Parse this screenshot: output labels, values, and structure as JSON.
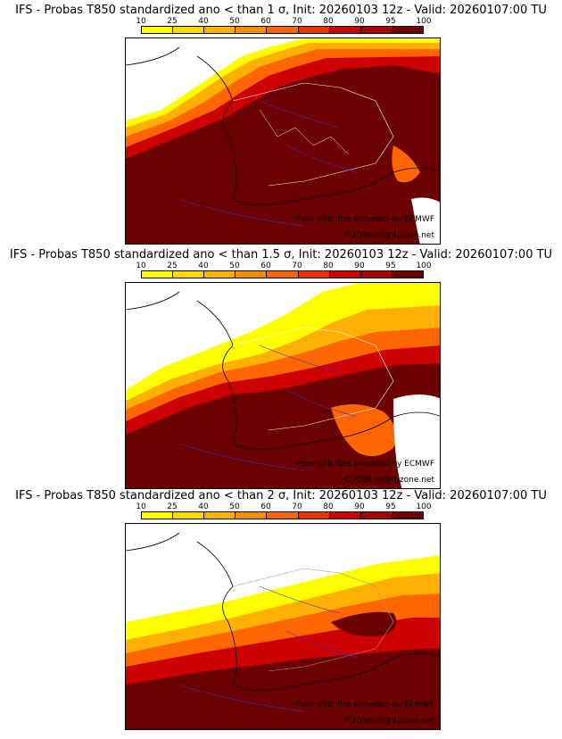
{
  "colorbar": {
    "ticks": [
      "10",
      "25",
      "40",
      "50",
      "60",
      "70",
      "80",
      "90",
      "95",
      "100"
    ],
    "colors": [
      "#ffff00",
      "#ffd700",
      "#ffb000",
      "#ff8c00",
      "#ff6600",
      "#ee3300",
      "#cc0000",
      "#aa0000",
      "#6b0000"
    ]
  },
  "credits": {
    "source": "from grib files provided by ECMWF",
    "copyright": "©2026 sb@irizone.net"
  },
  "panels": [
    {
      "title": "IFS - Probas T850  standardized ano < than 1 σ, Init: 20260103 12z - Valid: 20260107:00 TU",
      "threshold": "1"
    },
    {
      "title": "IFS - Probas T850  standardized ano < than 1.5 σ, Init: 20260103 12z - Valid: 20260107:00 TU",
      "threshold": "1.5"
    },
    {
      "title": "IFS - Probas T850  standardized ano < than 2 σ, Init: 20260103 12z - Valid: 20260107:00 TU",
      "threshold": "2"
    }
  ]
}
